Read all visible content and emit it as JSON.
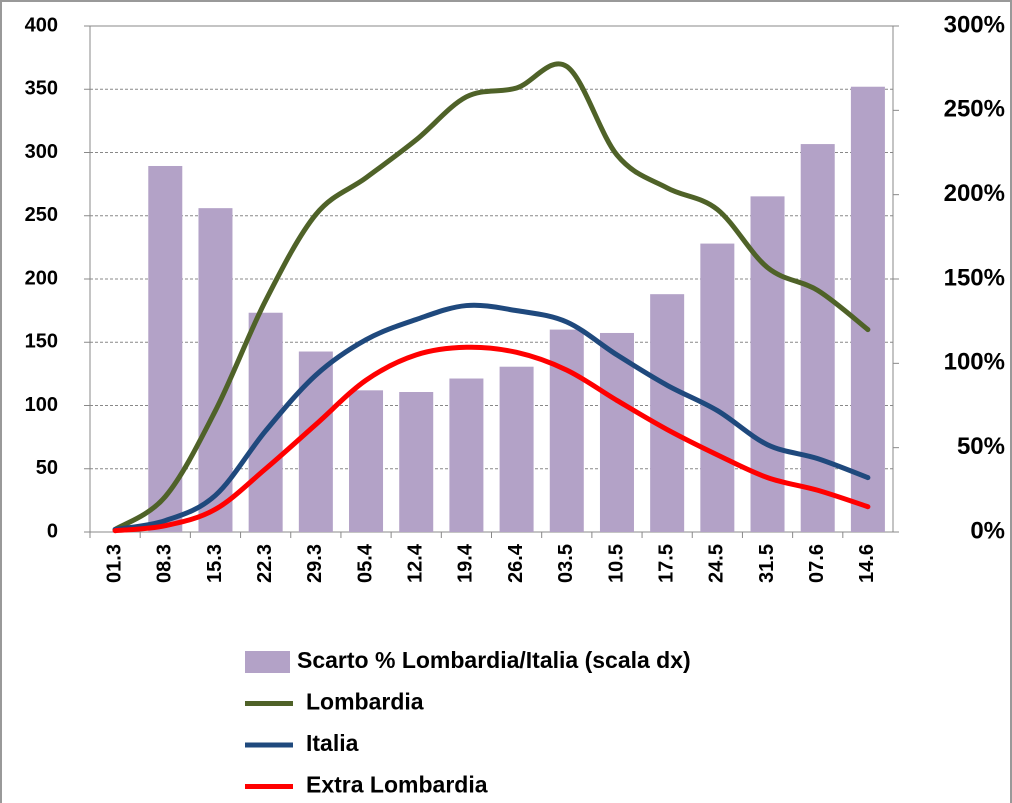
{
  "chart_data": {
    "type": "combo",
    "categories": [
      "01.3",
      "08.3",
      "15.3",
      "22.3",
      "29.3",
      "05.4",
      "12.4",
      "19.4",
      "26.4",
      "03.5",
      "10.5",
      "17.5",
      "24.5",
      "31.5",
      "07.6",
      "14.6"
    ],
    "ylim": [
      0,
      400
    ],
    "yticks": [
      0,
      50,
      100,
      150,
      200,
      250,
      300,
      350,
      400
    ],
    "y2lim": [
      0,
      300
    ],
    "y2ticks": [
      {
        "value": 0,
        "label": "0%"
      },
      {
        "value": 50,
        "label": "50%"
      },
      {
        "value": 100,
        "label": "100%"
      },
      {
        "value": 150,
        "label": "150%"
      },
      {
        "value": 200,
        "label": "200%"
      },
      {
        "value": 250,
        "label": "250%"
      },
      {
        "value": 300,
        "label": "300%"
      }
    ],
    "grid": true,
    "series": [
      {
        "name": "Scarto % Lombardia/Italia (scala dx)",
        "type": "bar",
        "axis": "y2",
        "color": "#b3a2c7",
        "values": [
          null,
          217,
          192,
          130,
          107,
          84,
          83,
          91,
          98,
          120,
          118,
          141,
          171,
          199,
          230,
          264
        ]
      },
      {
        "name": "Lombardia",
        "type": "line",
        "color": "#4f6228",
        "values": [
          2,
          28,
          96,
          183,
          251,
          280,
          310,
          344,
          351,
          368,
          298,
          272,
          255,
          209,
          191,
          160
        ]
      },
      {
        "name": "Italia",
        "type": "line",
        "color": "#1f497d",
        "values": [
          2,
          9,
          29,
          80,
          124,
          152,
          168,
          179,
          175,
          166,
          140,
          116,
          96,
          69,
          58,
          43
        ]
      },
      {
        "name": "Extra Lombardia",
        "type": "line",
        "color": "#ff0000",
        "values": [
          1,
          5,
          18,
          50,
          85,
          120,
          140,
          146,
          142,
          128,
          104,
          81,
          61,
          43,
          33,
          20
        ]
      }
    ]
  }
}
